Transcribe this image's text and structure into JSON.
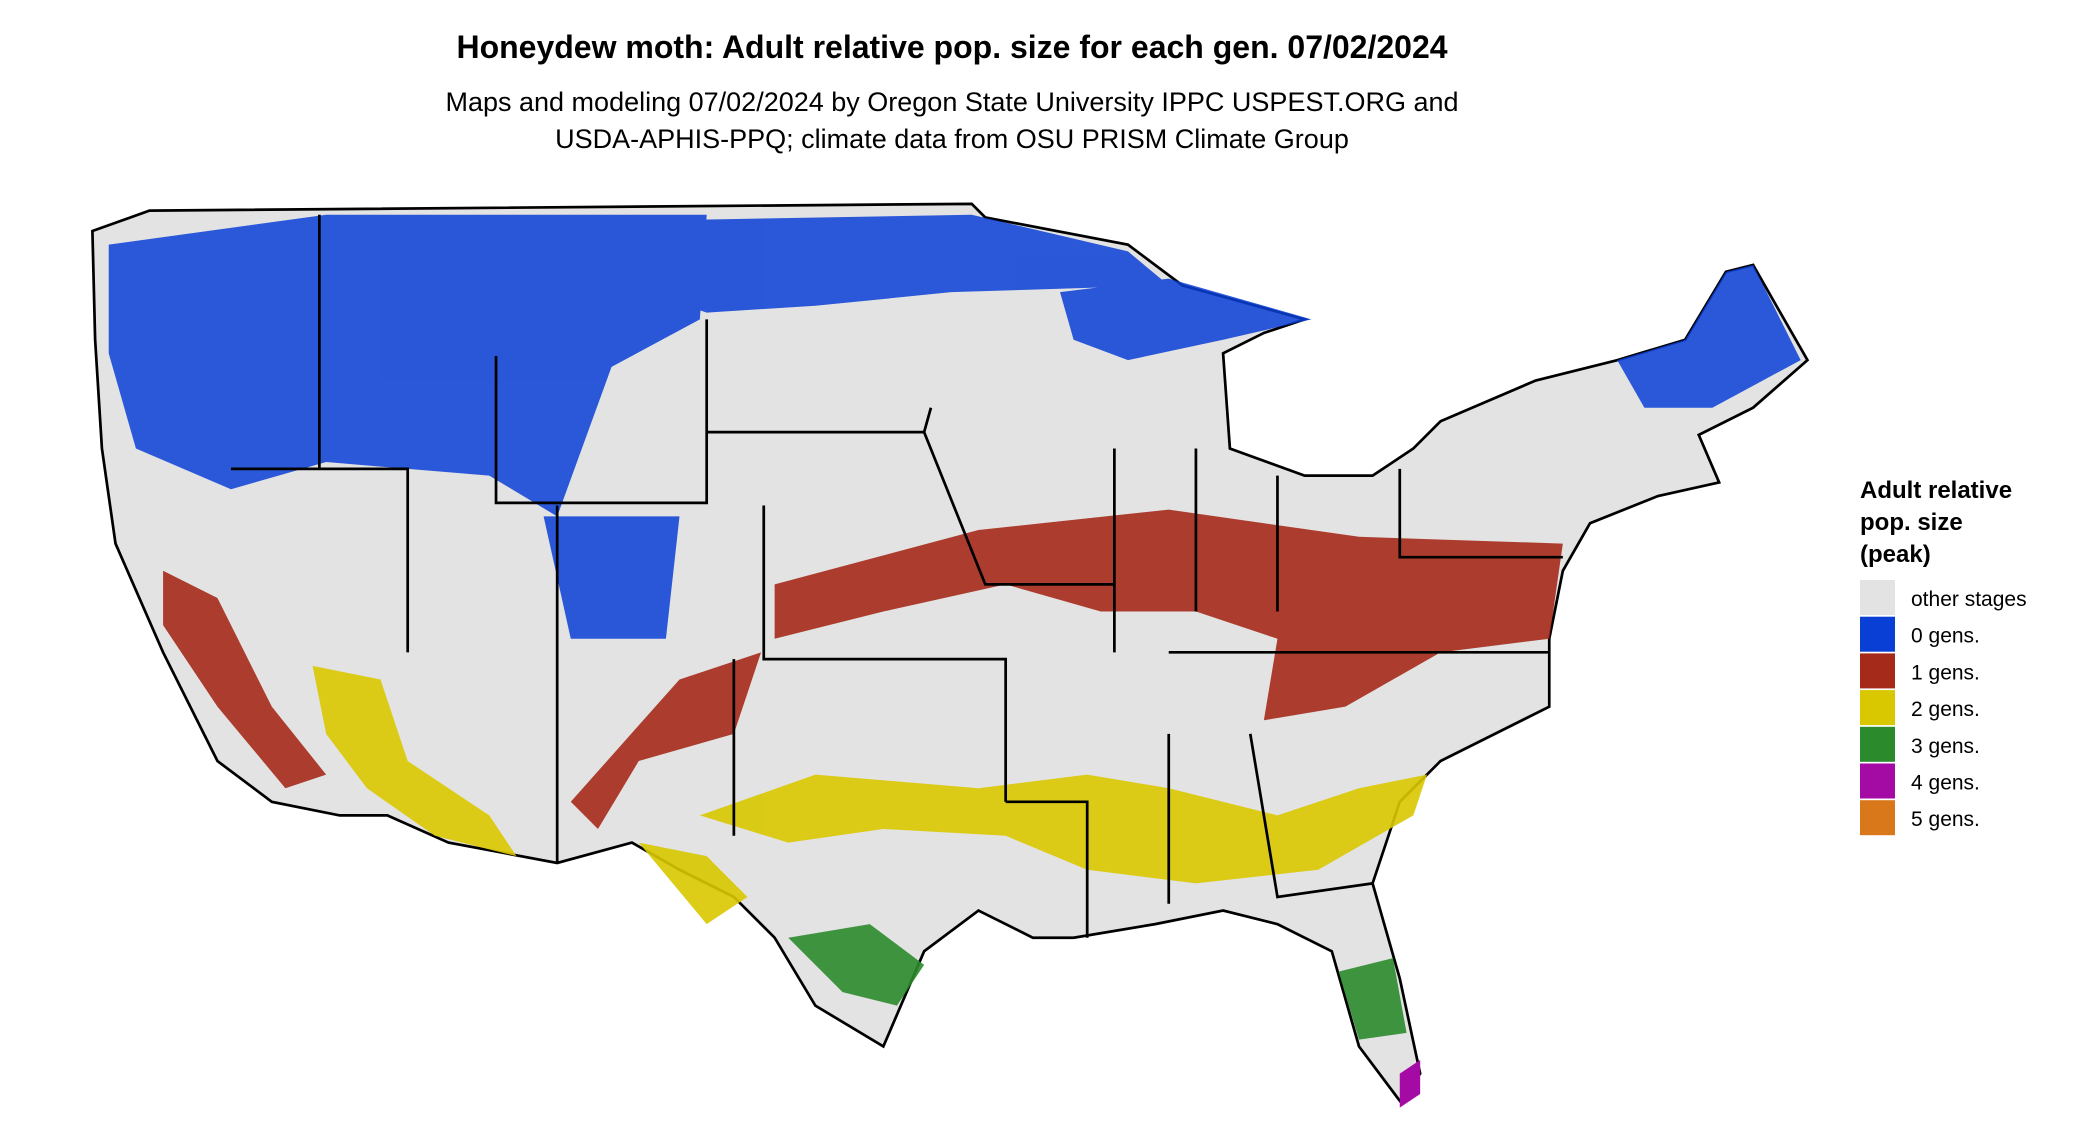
{
  "header": {
    "title": "Honeydew moth: Adult relative pop. size for each gen. 07/02/2024",
    "subtitle": [
      "Maps and modeling 07/02/2024 by Oregon State University IPPC USPEST.ORG and",
      "USDA-APHIS-PPQ; climate data from OSU PRISM Climate Group"
    ]
  },
  "legend": {
    "title": [
      "Adult relative",
      "pop. size",
      "(peak)"
    ],
    "items": [
      {
        "label": "other stages",
        "color": "#e3e3e3"
      },
      {
        "label": "0 gens.",
        "color": "#0a3fd6"
      },
      {
        "label": "1 gens.",
        "color": "#a52a1a"
      },
      {
        "label": "2 gens.",
        "color": "#d9c800"
      },
      {
        "label": "3 gens.",
        "color": "#2b8a2b"
      },
      {
        "label": "4 gens.",
        "color": "#a40aa4"
      },
      {
        "label": "5 gens.",
        "color": "#d9781a"
      }
    ]
  }
}
